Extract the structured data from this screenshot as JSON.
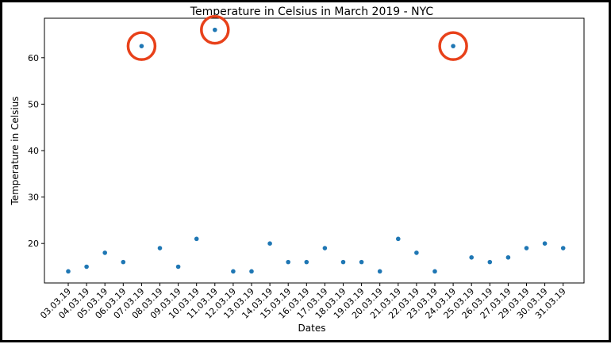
{
  "chart_data": {
    "type": "scatter",
    "title": "Temperature in Celsius in March 2019 - NYC",
    "xlabel": "Dates",
    "ylabel": "Temperature in Celsius",
    "categories": [
      "03.03.19",
      "04.03.19",
      "05.03.19",
      "06.03.19",
      "07.03.19",
      "08.03.19",
      "09.03.19",
      "10.03.19",
      "11.03.19",
      "12.03.19",
      "13.03.19",
      "14.03.19",
      "15.03.19",
      "16.03.19",
      "17.03.19",
      "18.03.19",
      "19.03.19",
      "20.03.19",
      "21.03.19",
      "22.03.19",
      "23.03.19",
      "24.03.19",
      "25.03.19",
      "26.03.19",
      "27.03.19",
      "29.03.19",
      "30.03.19",
      "31.03.19"
    ],
    "points": [
      {
        "x": "03.03.19",
        "y": 14
      },
      {
        "x": "04.03.19",
        "y": 15
      },
      {
        "x": "05.03.19",
        "y": 18
      },
      {
        "x": "06.03.19",
        "y": 16
      },
      {
        "x": "07.03.19",
        "y": 62.5
      },
      {
        "x": "08.03.19",
        "y": 19
      },
      {
        "x": "09.03.19",
        "y": 15
      },
      {
        "x": "10.03.19",
        "y": 21
      },
      {
        "x": "11.03.19",
        "y": 66
      },
      {
        "x": "12.03.19",
        "y": 14
      },
      {
        "x": "13.03.19",
        "y": 14
      },
      {
        "x": "14.03.19",
        "y": 20
      },
      {
        "x": "15.03.19",
        "y": 16
      },
      {
        "x": "16.03.19",
        "y": 16
      },
      {
        "x": "17.03.19",
        "y": 19
      },
      {
        "x": "18.03.19",
        "y": 16
      },
      {
        "x": "19.03.19",
        "y": 16
      },
      {
        "x": "20.03.19",
        "y": 14
      },
      {
        "x": "21.03.19",
        "y": 21
      },
      {
        "x": "22.03.19",
        "y": 18
      },
      {
        "x": "23.03.19",
        "y": 14
      },
      {
        "x": "24.03.19",
        "y": 62.5
      },
      {
        "x": "25.03.19",
        "y": 17
      },
      {
        "x": "26.03.19",
        "y": 16
      },
      {
        "x": "27.03.19",
        "y": 17
      },
      {
        "x": "29.03.19",
        "y": 19
      },
      {
        "x": "30.03.19",
        "y": 20
      },
      {
        "x": "31.03.19",
        "y": 19
      }
    ],
    "highlighted_points": [
      "07.03.19",
      "11.03.19",
      "24.03.19"
    ],
    "yticks": [
      20,
      30,
      40,
      50,
      60
    ],
    "ylim": [
      11.5,
      68.5
    ],
    "grid": false,
    "marker_color": "#1f77b4",
    "highlight_color": "#e8411a"
  }
}
